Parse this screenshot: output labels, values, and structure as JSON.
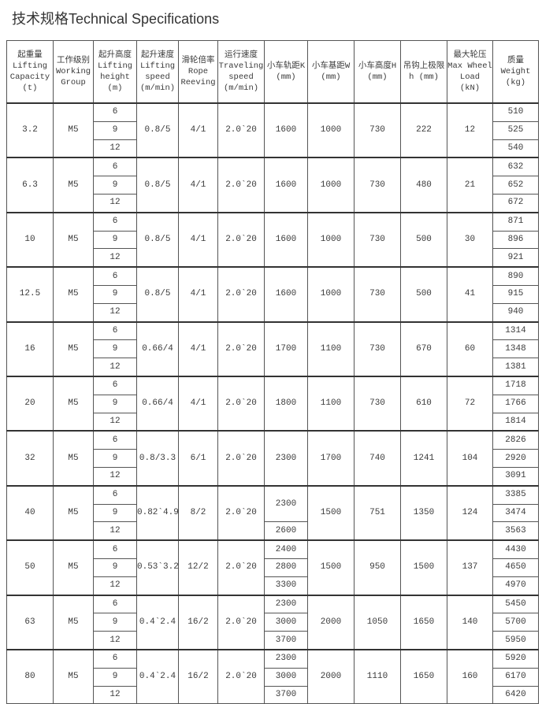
{
  "title": "技术规格Technical Specifications",
  "headers": [
    [
      "起重量",
      "Lifting",
      "Capacity",
      "(t)"
    ],
    [
      "工作级别",
      "Working",
      "Group"
    ],
    [
      "起升高度",
      "Lifting",
      "height",
      "(m)"
    ],
    [
      "起升速度",
      "Lifting",
      "speed",
      "(m/min)"
    ],
    [
      "滑轮倍率",
      "Rope",
      "Reeving"
    ],
    [
      "运行速度",
      "Traveling",
      "speed",
      "(m/min)"
    ],
    [
      "小车轨距K",
      "(mm)"
    ],
    [
      "小车基距W",
      "(mm)"
    ],
    [
      "小车高度H",
      "(mm)"
    ],
    [
      "吊钩上极限",
      "h (mm)"
    ],
    [
      "最大轮压",
      "Max Wheel",
      "Load",
      "(kN)"
    ],
    [
      "质量",
      "Weight",
      "(kg)"
    ]
  ],
  "rows": [
    {
      "capacity": "3.2",
      "group": "M5",
      "heights": [
        "6",
        "9",
        "12"
      ],
      "speed": "0.8/5",
      "reeving": "4/1",
      "travel": "2.0`20",
      "track": [
        "1600"
      ],
      "base": "1000",
      "trolley_height": "730",
      "hook": "222",
      "wheel_load": "12",
      "weights": [
        "510",
        "525",
        "540"
      ]
    },
    {
      "capacity": "6.3",
      "group": "M5",
      "heights": [
        "6",
        "9",
        "12"
      ],
      "speed": "0.8/5",
      "reeving": "4/1",
      "travel": "2.0`20",
      "track": [
        "1600"
      ],
      "base": "1000",
      "trolley_height": "730",
      "hook": "480",
      "wheel_load": "21",
      "weights": [
        "632",
        "652",
        "672"
      ]
    },
    {
      "capacity": "10",
      "group": "M5",
      "heights": [
        "6",
        "9",
        "12"
      ],
      "speed": "0.8/5",
      "reeving": "4/1",
      "travel": "2.0`20",
      "track": [
        "1600"
      ],
      "base": "1000",
      "trolley_height": "730",
      "hook": "500",
      "wheel_load": "30",
      "weights": [
        "871",
        "896",
        "921"
      ]
    },
    {
      "capacity": "12.5",
      "group": "M5",
      "heights": [
        "6",
        "9",
        "12"
      ],
      "speed": "0.8/5",
      "reeving": "4/1",
      "travel": "2.0`20",
      "track": [
        "1600"
      ],
      "base": "1000",
      "trolley_height": "730",
      "hook": "500",
      "wheel_load": "41",
      "weights": [
        "890",
        "915",
        "940"
      ]
    },
    {
      "capacity": "16",
      "group": "M5",
      "heights": [
        "6",
        "9",
        "12"
      ],
      "speed": "0.66/4",
      "reeving": "4/1",
      "travel": "2.0`20",
      "track": [
        "1700"
      ],
      "base": "1100",
      "trolley_height": "730",
      "hook": "670",
      "wheel_load": "60",
      "weights": [
        "1314",
        "1348",
        "1381"
      ]
    },
    {
      "capacity": "20",
      "group": "M5",
      "heights": [
        "6",
        "9",
        "12"
      ],
      "speed": "0.66/4",
      "reeving": "4/1",
      "travel": "2.0`20",
      "track": [
        "1800"
      ],
      "base": "1100",
      "trolley_height": "730",
      "hook": "610",
      "wheel_load": "72",
      "weights": [
        "1718",
        "1766",
        "1814"
      ]
    },
    {
      "capacity": "32",
      "group": "M5",
      "heights": [
        "6",
        "9",
        "12"
      ],
      "speed": "0.8/3.3",
      "reeving": "6/1",
      "travel": "2.0`20",
      "track": [
        "2300"
      ],
      "base": "1700",
      "trolley_height": "740",
      "hook": "1241",
      "wheel_load": "104",
      "weights": [
        "2826",
        "2920",
        "3091"
      ]
    },
    {
      "capacity": "40",
      "group": "M5",
      "heights": [
        "6",
        "9",
        "12"
      ],
      "speed": "0.82`4.9",
      "reeving": "8/2",
      "travel": "2.0`20",
      "track": [
        "2300",
        "2600"
      ],
      "base": "1500",
      "trolley_height": "751",
      "hook": "1350",
      "wheel_load": "124",
      "weights": [
        "3385",
        "3474",
        "3563"
      ]
    },
    {
      "capacity": "50",
      "group": "M5",
      "heights": [
        "6",
        "9",
        "12"
      ],
      "speed": "0.53`3.2",
      "reeving": "12/2",
      "travel": "2.0`20",
      "track": [
        "2400",
        "2800",
        "3300"
      ],
      "base": "1500",
      "trolley_height": "950",
      "hook": "1500",
      "wheel_load": "137",
      "weights": [
        "4430",
        "4650",
        "4970"
      ]
    },
    {
      "capacity": "63",
      "group": "M5",
      "heights": [
        "6",
        "9",
        "12"
      ],
      "speed": "0.4`2.4",
      "reeving": "16/2",
      "travel": "2.0`20",
      "track": [
        "2300",
        "3000",
        "3700"
      ],
      "base": "2000",
      "trolley_height": "1050",
      "hook": "1650",
      "wheel_load": "140",
      "weights": [
        "5450",
        "5700",
        "5950"
      ]
    },
    {
      "capacity": "80",
      "group": "M5",
      "heights": [
        "6",
        "9",
        "12"
      ],
      "speed": "0.4`2.4",
      "reeving": "16/2",
      "travel": "2.0`20",
      "track": [
        "2300",
        "3000",
        "3700"
      ],
      "base": "2000",
      "trolley_height": "1110",
      "hook": "1650",
      "wheel_load": "160",
      "weights": [
        "5920",
        "6170",
        "6420"
      ]
    }
  ]
}
